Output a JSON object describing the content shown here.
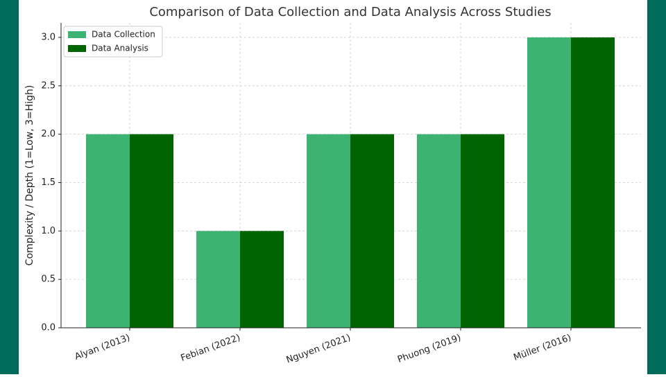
{
  "chart_data": {
    "type": "bar",
    "title": "Comparison of Data Collection and Data Analysis Across Studies",
    "y_label": "Complexity / Depth (1=Low, 3=High)",
    "categories": [
      "Alyan (2013)",
      "Febian (2022)",
      "Nguyen (2021)",
      "Phuong (2019)",
      "Müller (2016)"
    ],
    "series": [
      {
        "name": "Data Collection",
        "color": "#3cb371",
        "values": [
          2,
          1,
          2,
          2,
          3
        ]
      },
      {
        "name": "Data Analysis",
        "color": "#006400",
        "values": [
          2,
          1,
          2,
          2,
          3
        ]
      }
    ],
    "ylim": [
      0,
      3.15
    ],
    "yticks": [
      {
        "value": 0,
        "label": "0.0"
      },
      {
        "value": 0.5,
        "label": "0.5"
      },
      {
        "value": 1,
        "label": "1.0"
      },
      {
        "value": 1.5,
        "label": "1.5"
      },
      {
        "value": 2,
        "label": "2.0"
      },
      {
        "value": 2.5,
        "label": "2.5"
      },
      {
        "value": 3,
        "label": "3.0"
      }
    ],
    "grid": true,
    "legend": "upper-left"
  }
}
